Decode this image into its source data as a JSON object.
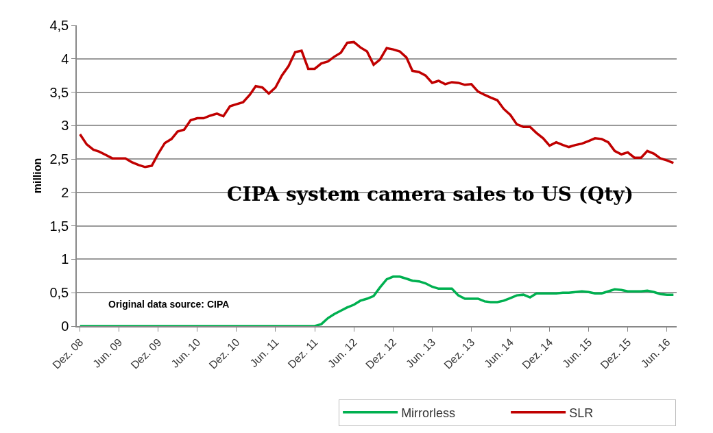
{
  "chart_data": {
    "type": "line",
    "title": "CIPA system camera sales to US (Qty)",
    "ylabel": "million",
    "x": [
      "2008-12",
      "2009-01",
      "2009-02",
      "2009-03",
      "2009-04",
      "2009-05",
      "2009-06",
      "2009-07",
      "2009-08",
      "2009-09",
      "2009-10",
      "2009-11",
      "2009-12",
      "2010-01",
      "2010-02",
      "2010-03",
      "2010-04",
      "2010-05",
      "2010-06",
      "2010-07",
      "2010-08",
      "2010-09",
      "2010-10",
      "2010-11",
      "2010-12",
      "2011-01",
      "2011-02",
      "2011-03",
      "2011-04",
      "2011-05",
      "2011-06",
      "2011-07",
      "2011-08",
      "2011-09",
      "2011-10",
      "2011-11",
      "2011-12",
      "2012-01",
      "2012-02",
      "2012-03",
      "2012-04",
      "2012-05",
      "2012-06",
      "2012-07",
      "2012-08",
      "2012-09",
      "2012-10",
      "2012-11",
      "2012-12",
      "2013-01",
      "2013-02",
      "2013-03",
      "2013-04",
      "2013-05",
      "2013-06",
      "2013-07",
      "2013-08",
      "2013-09",
      "2013-10",
      "2013-11",
      "2013-12",
      "2014-01",
      "2014-02",
      "2014-03",
      "2014-04",
      "2014-05",
      "2014-06",
      "2014-07",
      "2014-08",
      "2014-09",
      "2014-10",
      "2014-11",
      "2014-12",
      "2015-01",
      "2015-02",
      "2015-03",
      "2015-04",
      "2015-05",
      "2015-06",
      "2015-07",
      "2015-08",
      "2015-09",
      "2015-10",
      "2015-11",
      "2015-12",
      "2016-01",
      "2016-02",
      "2016-03",
      "2016-04",
      "2016-05",
      "2016-06",
      "2016-07"
    ],
    "series": [
      {
        "name": "Mirrorless",
        "color": "#00b050",
        "values": [
          0,
          0,
          0,
          0,
          0,
          0,
          0,
          0,
          0,
          0,
          0,
          0,
          0,
          0,
          0,
          0,
          0,
          0,
          0,
          0,
          0,
          0,
          0,
          0,
          0,
          0,
          0,
          0,
          0,
          0,
          0,
          0,
          0,
          0,
          0,
          0,
          0,
          0.03,
          0.12,
          0.18,
          0.23,
          0.28,
          0.32,
          0.38,
          0.41,
          0.45,
          0.58,
          0.7,
          0.74,
          0.74,
          0.71,
          0.68,
          0.67,
          0.64,
          0.59,
          0.56,
          0.56,
          0.56,
          0.46,
          0.41,
          0.41,
          0.41,
          0.37,
          0.36,
          0.36,
          0.38,
          0.42,
          0.46,
          0.47,
          0.43,
          0.49,
          0.49,
          0.49,
          0.49,
          0.5,
          0.5,
          0.51,
          0.52,
          0.51,
          0.49,
          0.49,
          0.52,
          0.55,
          0.54,
          0.52,
          0.52,
          0.52,
          0.53,
          0.51,
          0.48,
          0.47,
          0.47
        ]
      },
      {
        "name": "SLR",
        "color": "#c00000",
        "values": [
          2.87,
          2.72,
          2.64,
          2.61,
          2.56,
          2.51,
          2.51,
          2.51,
          2.45,
          2.41,
          2.38,
          2.4,
          2.58,
          2.74,
          2.8,
          2.91,
          2.94,
          3.08,
          3.11,
          3.11,
          3.15,
          3.18,
          3.14,
          3.29,
          3.32,
          3.35,
          3.46,
          3.59,
          3.57,
          3.48,
          3.57,
          3.75,
          3.89,
          4.1,
          4.12,
          3.85,
          3.85,
          3.93,
          3.96,
          4.03,
          4.09,
          4.24,
          4.25,
          4.17,
          4.11,
          3.91,
          3.99,
          4.16,
          4.14,
          4.11,
          4.02,
          3.82,
          3.8,
          3.75,
          3.64,
          3.67,
          3.62,
          3.65,
          3.64,
          3.61,
          3.62,
          3.51,
          3.46,
          3.42,
          3.38,
          3.25,
          3.16,
          3.02,
          2.98,
          2.98,
          2.89,
          2.81,
          2.7,
          2.75,
          2.71,
          2.68,
          2.71,
          2.73,
          2.77,
          2.81,
          2.8,
          2.75,
          2.62,
          2.57,
          2.6,
          2.52,
          2.52,
          2.62,
          2.58,
          2.51,
          2.48,
          2.44
        ]
      }
    ],
    "xlim": [
      "2008-11-16",
      "2016-07-16"
    ],
    "xticks": [
      {
        "value": "2008-12",
        "label": "Dez. 08"
      },
      {
        "value": "2009-06",
        "label": "Jun. 09"
      },
      {
        "value": "2009-12",
        "label": "Dez. 09"
      },
      {
        "value": "2010-06",
        "label": "Jun. 10"
      },
      {
        "value": "2010-12",
        "label": "Dez. 10"
      },
      {
        "value": "2011-06",
        "label": "Jun. 11"
      },
      {
        "value": "2011-12",
        "label": "Dez. 11"
      },
      {
        "value": "2012-06",
        "label": "Jun. 12"
      },
      {
        "value": "2012-12",
        "label": "Dez. 12"
      },
      {
        "value": "2013-06",
        "label": "Jun. 13"
      },
      {
        "value": "2013-12",
        "label": "Dez. 13"
      },
      {
        "value": "2014-06",
        "label": "Jun. 14"
      },
      {
        "value": "2014-12",
        "label": "Dez. 14"
      },
      {
        "value": "2015-06",
        "label": "Jun. 15"
      },
      {
        "value": "2015-12",
        "label": "Dez. 15"
      },
      {
        "value": "2016-06",
        "label": "Jun. 16"
      }
    ],
    "ylim": [
      0,
      4.5
    ],
    "yticks": [
      0,
      {
        "value": 0.5,
        "label": "0,5"
      },
      1,
      {
        "value": 1.5,
        "label": "1,5"
      },
      2,
      {
        "value": 2.5,
        "label": "2,5"
      },
      3,
      {
        "value": 3.5,
        "label": "3,5"
      },
      4,
      {
        "value": 4.5,
        "label": "4,5"
      }
    ],
    "grid": "y",
    "legend": "bottom right",
    "marker": "none",
    "line_style": "solid",
    "annotations": [
      "Original data source: CIPA"
    ]
  }
}
